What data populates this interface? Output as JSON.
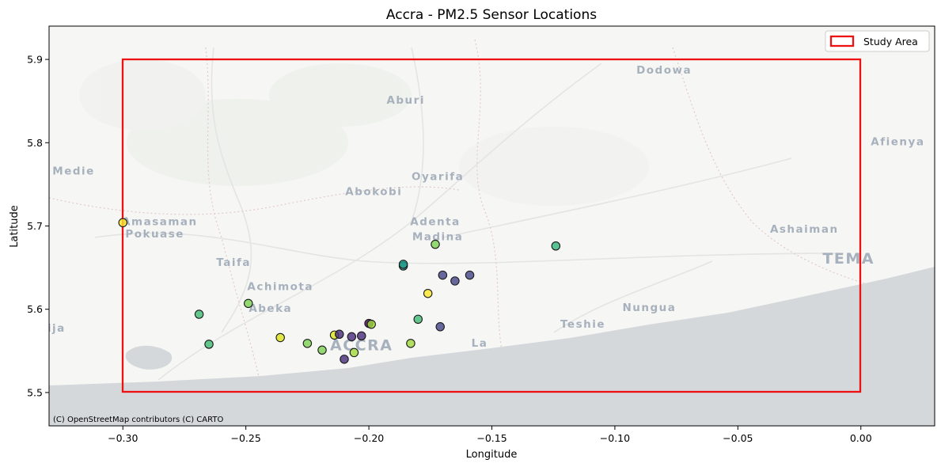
{
  "chart_data": {
    "type": "scatter",
    "title": "Accra - PM2.5 Sensor Locations",
    "xlabel": "Longitude",
    "ylabel": "Latitude",
    "xlim": [
      -0.33,
      0.03
    ],
    "ylim": [
      5.46,
      5.94
    ],
    "xticks": [
      -0.3,
      -0.25,
      -0.2,
      -0.15,
      -0.1,
      -0.05,
      0.0
    ],
    "xtick_labels": [
      "−0.30",
      "−0.25",
      "−0.20",
      "−0.15",
      "−0.10",
      "−0.05",
      "0.00"
    ],
    "yticks": [
      5.5,
      5.6,
      5.7,
      5.8,
      5.9
    ],
    "ytick_labels": [
      "5.5",
      "5.6",
      "5.7",
      "5.8",
      "5.9"
    ],
    "grid": false,
    "colormap": "viridis",
    "study_area": {
      "label": "Study Area",
      "lon_min": -0.3,
      "lon_max": 0.0,
      "lat_min": 5.5,
      "lat_max": 5.9,
      "color": "#ee1111"
    },
    "legend_placement": "top-right",
    "basemap_attribution": "(C) OpenStreetMap contributors (C) CARTO",
    "points": [
      {
        "lon": -0.3,
        "lat": 5.704,
        "color": "#fde725"
      },
      {
        "lon": -0.269,
        "lat": 5.594,
        "color": "#3fbc73"
      },
      {
        "lon": -0.265,
        "lat": 5.558,
        "color": "#3fbc73"
      },
      {
        "lon": -0.249,
        "lat": 5.607,
        "color": "#7ad151"
      },
      {
        "lon": -0.236,
        "lat": 5.566,
        "color": "#dde318"
      },
      {
        "lon": -0.225,
        "lat": 5.559,
        "color": "#7ad151"
      },
      {
        "lon": -0.219,
        "lat": 5.551,
        "color": "#7ad151"
      },
      {
        "lon": -0.214,
        "lat": 5.569,
        "color": "#dde318"
      },
      {
        "lon": -0.212,
        "lat": 5.57,
        "color": "#472c7a"
      },
      {
        "lon": -0.21,
        "lat": 5.54,
        "color": "#472c7a"
      },
      {
        "lon": -0.207,
        "lat": 5.567,
        "color": "#472c7a"
      },
      {
        "lon": -0.206,
        "lat": 5.548,
        "color": "#a0da39"
      },
      {
        "lon": -0.203,
        "lat": 5.568,
        "color": "#472c7a"
      },
      {
        "lon": -0.2,
        "lat": 5.583,
        "color": "#440154"
      },
      {
        "lon": -0.199,
        "lat": 5.582,
        "color": "#a0da39"
      },
      {
        "lon": -0.186,
        "lat": 5.652,
        "color": "#21918c"
      },
      {
        "lon": -0.186,
        "lat": 5.654,
        "color": "#1e9b8a"
      },
      {
        "lon": -0.183,
        "lat": 5.559,
        "color": "#a0da39"
      },
      {
        "lon": -0.18,
        "lat": 5.588,
        "color": "#3fbc73"
      },
      {
        "lon": -0.176,
        "lat": 5.619,
        "color": "#fde725"
      },
      {
        "lon": -0.173,
        "lat": 5.678,
        "color": "#7ad151"
      },
      {
        "lon": -0.171,
        "lat": 5.579,
        "color": "#414487"
      },
      {
        "lon": -0.17,
        "lat": 5.641,
        "color": "#414487"
      },
      {
        "lon": -0.165,
        "lat": 5.634,
        "color": "#414487"
      },
      {
        "lon": -0.159,
        "lat": 5.641,
        "color": "#414487"
      },
      {
        "lon": -0.124,
        "lat": 5.676,
        "color": "#35b779"
      }
    ]
  },
  "basemap": {
    "places": [
      {
        "name": "Dodowa",
        "lon": -0.08,
        "lat": 5.883
      },
      {
        "name": "Aburi",
        "lon": -0.185,
        "lat": 5.847
      },
      {
        "name": "Afienya",
        "lon": 0.015,
        "lat": 5.797
      },
      {
        "name": "Medie",
        "lon": -0.32,
        "lat": 5.762
      },
      {
        "name": "Oyarifa",
        "lon": -0.172,
        "lat": 5.755
      },
      {
        "name": "Abokobi",
        "lon": -0.198,
        "lat": 5.737
      },
      {
        "name": "Adenta",
        "lon": -0.173,
        "lat": 5.701
      },
      {
        "name": "Amasaman",
        "lon": -0.285,
        "lat": 5.701
      },
      {
        "name": "Pokuase",
        "lon": -0.287,
        "lat": 5.686
      },
      {
        "name": "Madina",
        "lon": -0.172,
        "lat": 5.683
      },
      {
        "name": "Ashaiman",
        "lon": -0.023,
        "lat": 5.692
      },
      {
        "name": "TEMA",
        "lon": -0.005,
        "lat": 5.655
      },
      {
        "name": "Taifa",
        "lon": -0.255,
        "lat": 5.652
      },
      {
        "name": "Achimota",
        "lon": -0.236,
        "lat": 5.623
      },
      {
        "name": "Abeka",
        "lon": -0.24,
        "lat": 5.597
      },
      {
        "name": "Nungua",
        "lon": -0.086,
        "lat": 5.598
      },
      {
        "name": "Teshie",
        "lon": -0.113,
        "lat": 5.578
      },
      {
        "name": "ija",
        "lon": -0.327,
        "lat": 5.573
      },
      {
        "name": "La",
        "lon": -0.155,
        "lat": 5.555
      },
      {
        "name": "ACCRA",
        "lon": -0.203,
        "lat": 5.551
      }
    ]
  }
}
